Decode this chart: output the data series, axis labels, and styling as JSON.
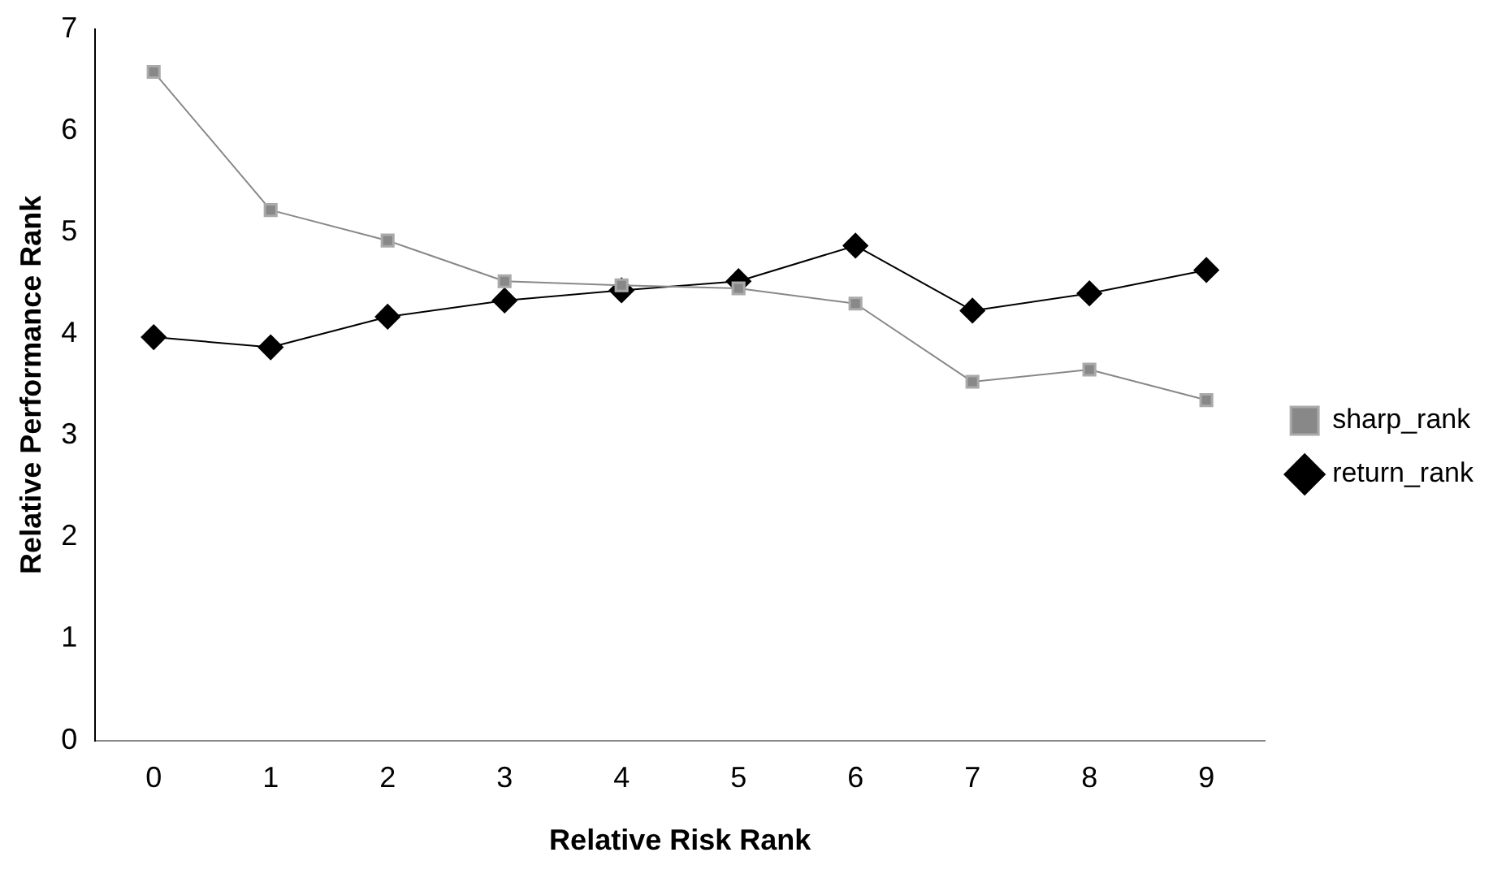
{
  "chart_data": {
    "type": "line",
    "xlabel": "Relative Risk Rank",
    "ylabel": "Relative Performance Rank",
    "categories": [
      "0",
      "1",
      "2",
      "3",
      "4",
      "5",
      "6",
      "7",
      "8",
      "9"
    ],
    "series": [
      {
        "name": "return_rank",
        "color": "#000000",
        "marker": "diamond",
        "values": [
          3.97,
          3.87,
          4.17,
          4.33,
          4.43,
          4.52,
          4.87,
          4.23,
          4.4,
          4.63
        ]
      },
      {
        "name": "sharp_rank",
        "color": "#888888",
        "marker": "square",
        "values": [
          6.58,
          5.22,
          4.92,
          4.52,
          4.48,
          4.45,
          4.3,
          3.53,
          3.65,
          3.35
        ]
      }
    ],
    "ylim": [
      0,
      7
    ],
    "yticks": [
      0,
      1,
      2,
      3,
      4,
      5,
      6,
      7
    ],
    "grid": false,
    "legend": "right",
    "line_style": "solid"
  }
}
